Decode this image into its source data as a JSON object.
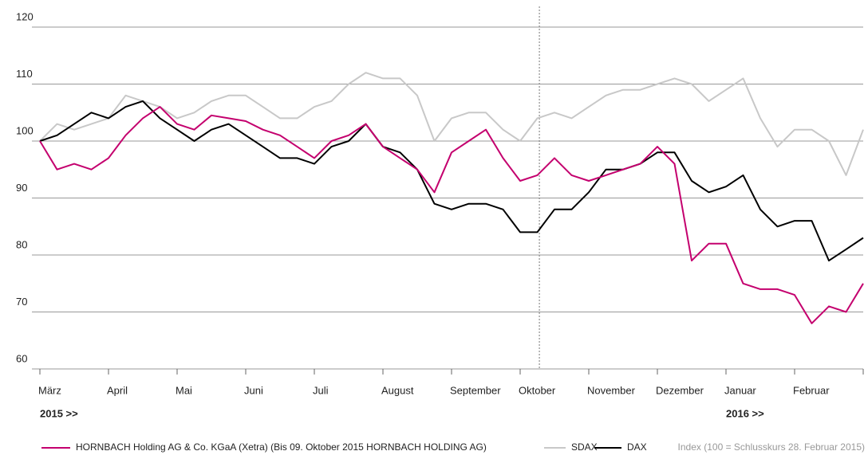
{
  "chart_data": {
    "type": "line",
    "x": [
      0,
      0.25,
      0.5,
      0.75,
      1,
      1.25,
      1.5,
      1.75,
      2,
      2.25,
      2.5,
      2.75,
      3,
      3.25,
      3.5,
      3.75,
      4,
      4.25,
      4.5,
      4.75,
      5,
      5.25,
      5.5,
      5.75,
      6,
      6.25,
      6.5,
      6.75,
      7,
      7.25,
      7.5,
      7.75,
      8,
      8.25,
      8.5,
      8.75,
      9,
      9.25,
      9.5,
      9.75,
      10,
      10.25,
      10.5,
      10.75,
      11,
      11.25,
      11.5,
      11.75,
      12
    ],
    "series": [
      {
        "name": "HORNBACH Holding AG & Co. KGaA (Xetra)  (Bis 09. Oktober 2015 HORNBACH HOLDING AG)",
        "color": "#c4006e",
        "values": [
          100,
          95,
          96,
          95,
          97,
          101,
          104,
          106,
          103,
          102,
          104.5,
          104,
          103.5,
          102,
          101,
          99,
          97,
          100,
          101,
          103,
          99,
          97,
          95,
          91,
          98,
          100,
          102,
          97,
          93,
          94,
          97,
          94,
          93,
          94,
          95,
          96,
          99,
          96,
          79,
          82,
          82,
          75,
          74,
          74,
          73,
          68,
          71,
          70,
          75
        ]
      },
      {
        "name": "SDAX",
        "color": "#c8c8c8",
        "values": [
          100,
          103,
          102,
          103,
          104,
          108,
          107,
          106,
          104,
          105,
          107,
          108,
          108,
          106,
          104,
          104,
          106,
          107,
          110,
          112,
          111,
          111,
          108,
          100,
          104,
          105,
          105,
          102,
          100,
          104,
          105,
          104,
          106,
          108,
          109,
          109,
          110,
          111,
          110,
          107,
          109,
          111,
          104,
          99,
          102,
          102,
          100,
          94,
          102
        ]
      },
      {
        "name": "DAX",
        "color": "#000000",
        "values": [
          100,
          101,
          103,
          105,
          104,
          106,
          107,
          104,
          102,
          100,
          102,
          103,
          101,
          99,
          97,
          97,
          96,
          99,
          100,
          103,
          99,
          98,
          95,
          89,
          88,
          89,
          89,
          88,
          84,
          84,
          88,
          88,
          91,
          95,
          95,
          96,
          98,
          98,
          93,
          91,
          92,
          94,
          88,
          85,
          86,
          86,
          79,
          81,
          83
        ]
      }
    ],
    "xlim": [
      0,
      12
    ],
    "xticks": [
      {
        "value": 0,
        "label": "März"
      },
      {
        "value": 1,
        "label": "April"
      },
      {
        "value": 2,
        "label": "Mai"
      },
      {
        "value": 3,
        "label": "Juni"
      },
      {
        "value": 4,
        "label": "Juli"
      },
      {
        "value": 5,
        "label": "August"
      },
      {
        "value": 6,
        "label": "September"
      },
      {
        "value": 7,
        "label": "Oktober"
      },
      {
        "value": 8,
        "label": "November"
      },
      {
        "value": 9,
        "label": "Dezember"
      },
      {
        "value": 10,
        "label": "Januar"
      },
      {
        "value": 11,
        "label": "Februar"
      }
    ],
    "ylim": [
      60,
      120
    ],
    "yticks": [
      60,
      70,
      80,
      90,
      100,
      110,
      120
    ],
    "grid": true,
    "marker_x": 7.28,
    "annotations": [
      "2015 >>",
      "2016 >>"
    ],
    "note": "Index (100 = Schlusskurs 28. Februar 2015)"
  }
}
